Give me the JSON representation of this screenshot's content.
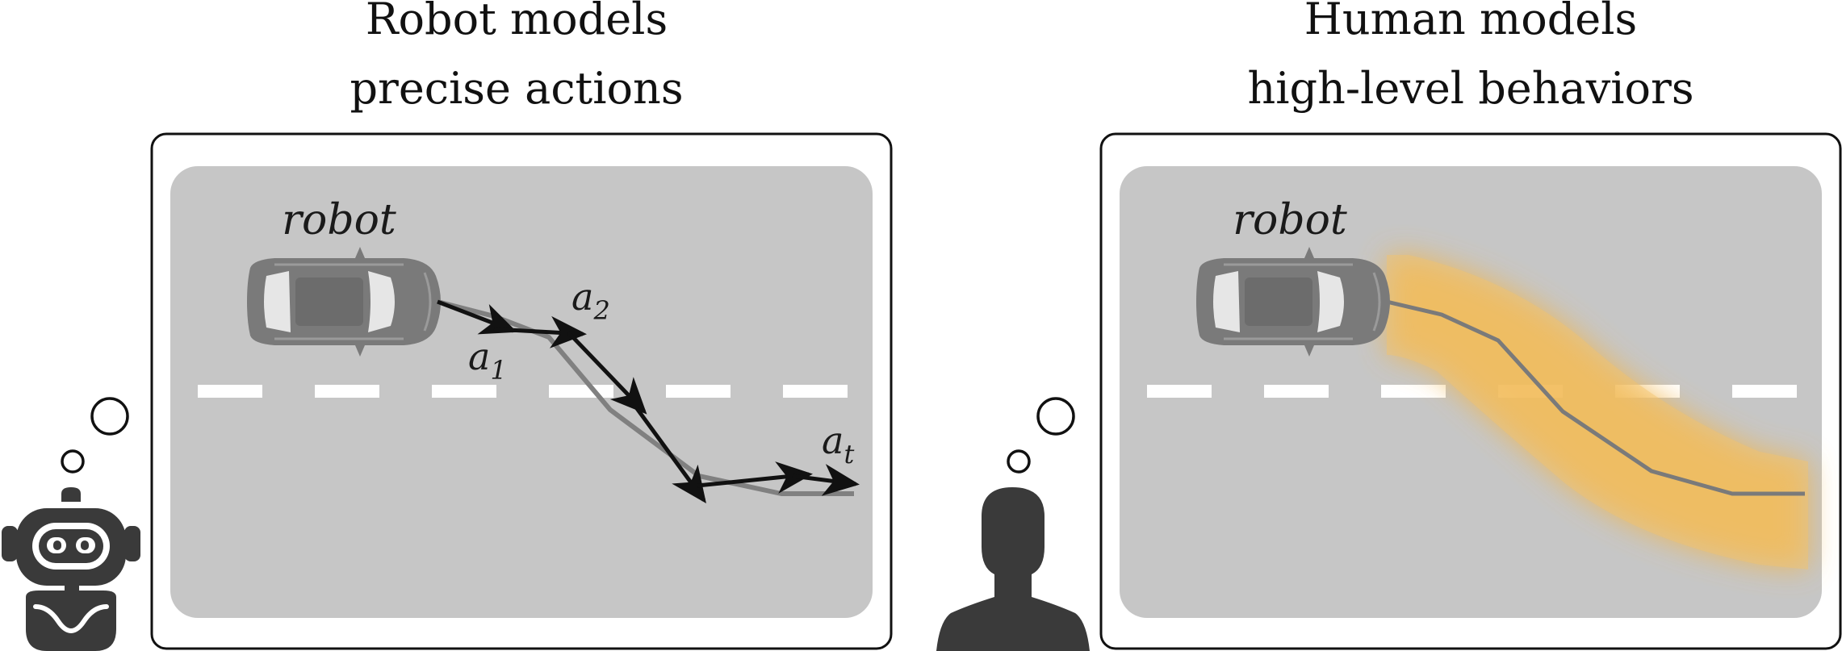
{
  "left_panel": {
    "title_line1": "Robot models",
    "title_line2": "precise actions",
    "car_label": "robot",
    "actions": [
      {
        "base": "a",
        "sub": "1"
      },
      {
        "base": "a",
        "sub": "2"
      },
      {
        "base": "a",
        "sub": "t"
      }
    ],
    "thinker_icon": "robot-icon"
  },
  "right_panel": {
    "title_line1": "Human models",
    "title_line2": "high-level behaviors",
    "car_label": "robot",
    "thinker_icon": "person-silhouette-icon"
  },
  "colors": {
    "road": "#c6c6c6",
    "lane_dash": "#ffffff",
    "car": "#7a7a7a",
    "true_path": "#808080",
    "action_arrow": "#111111",
    "behavior_band": "#f0b64e",
    "icon": "#3a3a3a"
  }
}
